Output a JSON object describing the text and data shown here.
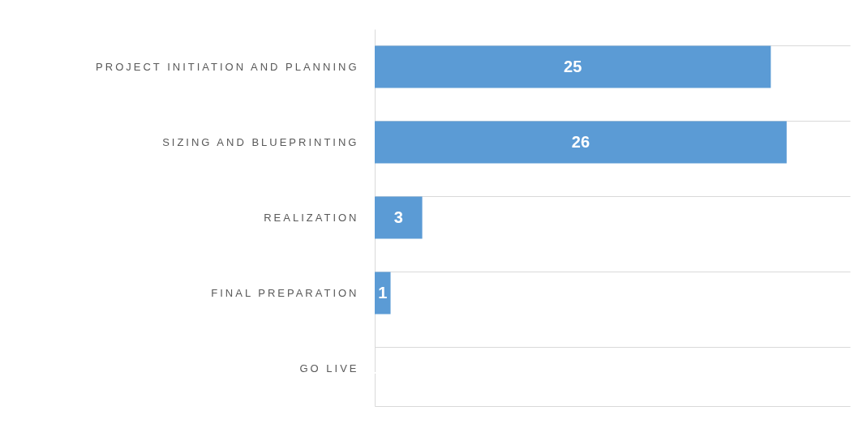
{
  "chart_data": {
    "type": "bar",
    "orientation": "horizontal",
    "categories": [
      "PROJECT INITIATION AND PLANNING",
      "SIZING AND BLUEPRINTING",
      "REALIZATION",
      "FINAL PREPARATION",
      "GO LIVE"
    ],
    "values": [
      25,
      26,
      3,
      1,
      0
    ],
    "value_labels": [
      "25",
      "26",
      "3",
      "1",
      null
    ],
    "color": "#5b9bd5",
    "xlim": [
      0,
      30
    ],
    "grid": "y",
    "tick_labels": "y"
  }
}
